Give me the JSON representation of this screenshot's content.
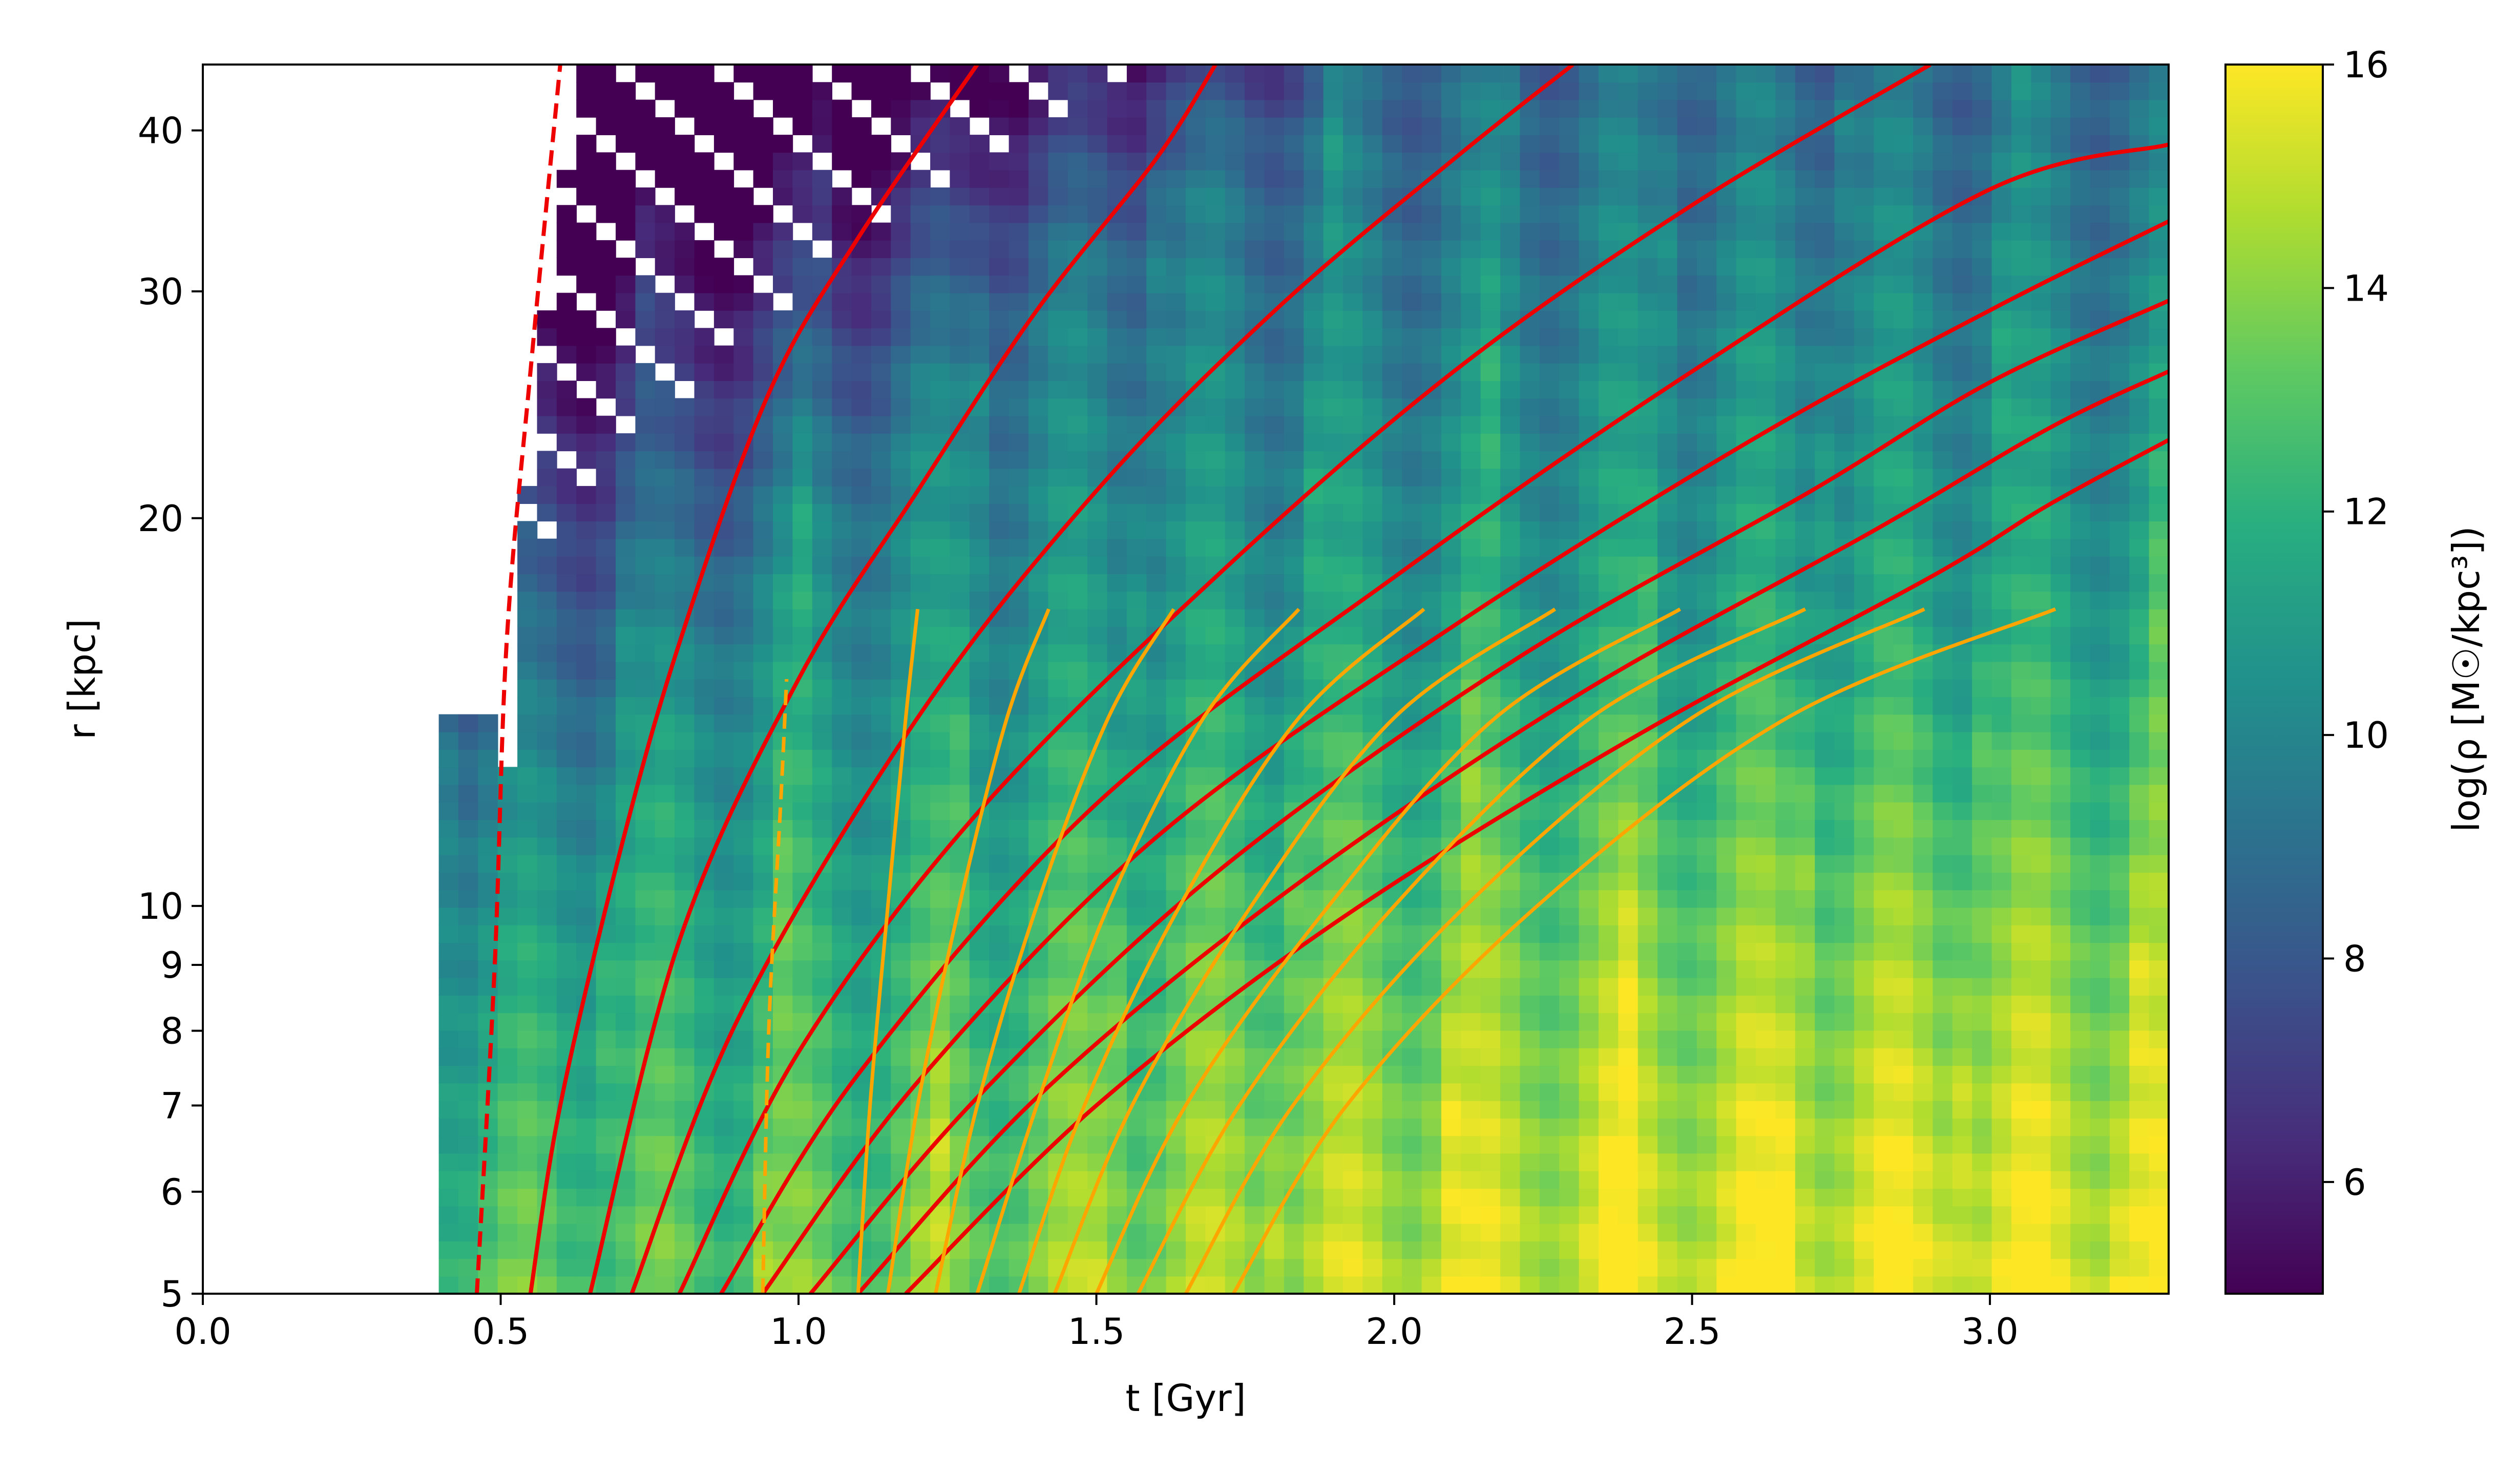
{
  "chart_data": {
    "type": "heatmap",
    "xlabel": "t [Gyr]",
    "ylabel": "r [kpc]",
    "colorbar_label": "log(ρ [M☉/kpc³])",
    "xlim": [
      0.0,
      3.3
    ],
    "ylim": [
      5,
      45
    ],
    "y_scale": "log",
    "x_ticks": [
      0.0,
      0.5,
      1.0,
      1.5,
      2.0,
      2.5,
      3.0
    ],
    "x_tick_labels": [
      "0.0",
      "0.5",
      "1.0",
      "1.5",
      "2.0",
      "2.5",
      "3.0"
    ],
    "y_ticks": [
      5,
      6,
      7,
      8,
      9,
      10,
      20,
      30,
      40
    ],
    "y_tick_labels": [
      "5",
      "6",
      "7",
      "8",
      "9",
      "10",
      "20",
      "30",
      "40"
    ],
    "colorbar_range": [
      5,
      16
    ],
    "colorbar_ticks": [
      6,
      8,
      10,
      12,
      14,
      16
    ],
    "colorbar_tick_labels": [
      "6",
      "8",
      "10",
      "12",
      "14",
      "16"
    ],
    "colormap": "viridis",
    "colors": {
      "shell_curves": "#ee0000",
      "inner_curves": "#ffa500"
    },
    "shell_curves": [
      {
        "style": "dashed",
        "points": [
          [
            0.46,
            5
          ],
          [
            0.49,
            9
          ],
          [
            0.51,
            16
          ],
          [
            0.55,
            26
          ],
          [
            0.6,
            45
          ]
        ]
      },
      {
        "style": "solid",
        "points": [
          [
            0.55,
            5
          ],
          [
            0.6,
            7
          ],
          [
            0.7,
            11
          ],
          [
            0.8,
            16
          ],
          [
            0.95,
            25
          ],
          [
            1.1,
            33
          ],
          [
            1.3,
            45
          ]
        ]
      },
      {
        "style": "solid",
        "points": [
          [
            0.65,
            5
          ],
          [
            0.8,
            9.4
          ],
          [
            1.0,
            15
          ],
          [
            1.2,
            21
          ],
          [
            1.4,
            29
          ],
          [
            1.6,
            38
          ],
          [
            1.7,
            45
          ]
        ]
      },
      {
        "style": "solid",
        "points": [
          [
            0.72,
            5
          ],
          [
            0.9,
            8.2
          ],
          [
            1.2,
            14
          ],
          [
            1.5,
            21
          ],
          [
            1.8,
            29
          ],
          [
            2.1,
            38
          ],
          [
            2.3,
            45
          ]
        ]
      },
      {
        "style": "solid",
        "points": [
          [
            0.8,
            5
          ],
          [
            1.0,
            7.7
          ],
          [
            1.3,
            11.8
          ],
          [
            1.7,
            18
          ],
          [
            2.1,
            26
          ],
          [
            2.5,
            35
          ],
          [
            2.9,
            45
          ]
        ]
      },
      {
        "style": "solid",
        "points": [
          [
            0.87,
            5
          ],
          [
            1.1,
            7.4
          ],
          [
            1.5,
            12
          ],
          [
            2.0,
            18
          ],
          [
            2.5,
            26
          ],
          [
            3.0,
            36
          ],
          [
            3.3,
            39
          ]
        ]
      },
      {
        "style": "solid",
        "points": [
          [
            0.94,
            5
          ],
          [
            1.2,
            7.3
          ],
          [
            1.6,
            11.3
          ],
          [
            2.1,
            16.5
          ],
          [
            2.6,
            23
          ],
          [
            3.0,
            29
          ],
          [
            3.3,
            34
          ]
        ]
      },
      {
        "style": "solid",
        "points": [
          [
            1.02,
            5
          ],
          [
            1.3,
            7.1
          ],
          [
            1.7,
            10.6
          ],
          [
            2.2,
            15.5
          ],
          [
            2.7,
            21
          ],
          [
            3.0,
            25.5
          ],
          [
            3.3,
            29.5
          ]
        ]
      },
      {
        "style": "solid",
        "points": [
          [
            1.1,
            5
          ],
          [
            1.4,
            7.1
          ],
          [
            1.8,
            10.1
          ],
          [
            2.3,
            14.5
          ],
          [
            2.8,
            19.5
          ],
          [
            3.1,
            23.5
          ],
          [
            3.3,
            26
          ]
        ]
      },
      {
        "style": "solid",
        "points": [
          [
            1.18,
            5
          ],
          [
            1.5,
            7.0
          ],
          [
            1.9,
            9.7
          ],
          [
            2.4,
            13.5
          ],
          [
            2.9,
            18
          ],
          [
            3.1,
            20.5
          ],
          [
            3.3,
            23
          ]
        ]
      }
    ],
    "inner_curves": [
      {
        "style": "dashed",
        "points": [
          [
            0.94,
            5
          ],
          [
            0.95,
            8
          ],
          [
            0.97,
            12
          ],
          [
            0.98,
            15
          ]
        ]
      },
      {
        "style": "solid",
        "points": [
          [
            1.1,
            5
          ],
          [
            1.12,
            7
          ],
          [
            1.15,
            10
          ],
          [
            1.18,
            14
          ],
          [
            1.2,
            17
          ]
        ]
      },
      {
        "style": "solid",
        "points": [
          [
            1.15,
            5
          ],
          [
            1.2,
            7
          ],
          [
            1.27,
            10
          ],
          [
            1.35,
            14
          ],
          [
            1.42,
            17
          ]
        ]
      },
      {
        "style": "solid",
        "points": [
          [
            1.23,
            5
          ],
          [
            1.3,
            7
          ],
          [
            1.4,
            10
          ],
          [
            1.52,
            14
          ],
          [
            1.63,
            17
          ]
        ]
      },
      {
        "style": "solid",
        "points": [
          [
            1.3,
            5
          ],
          [
            1.4,
            7
          ],
          [
            1.52,
            10
          ],
          [
            1.68,
            14
          ],
          [
            1.84,
            17
          ]
        ]
      },
      {
        "style": "solid",
        "points": [
          [
            1.37,
            5
          ],
          [
            1.48,
            7
          ],
          [
            1.64,
            10
          ],
          [
            1.84,
            14
          ],
          [
            2.05,
            17
          ]
        ]
      },
      {
        "style": "solid",
        "points": [
          [
            1.43,
            5
          ],
          [
            1.56,
            7
          ],
          [
            1.76,
            10
          ],
          [
            2.0,
            14
          ],
          [
            2.27,
            17
          ]
        ]
      },
      {
        "style": "solid",
        "points": [
          [
            1.5,
            5
          ],
          [
            1.65,
            7
          ],
          [
            1.89,
            10
          ],
          [
            2.17,
            14
          ],
          [
            2.48,
            17
          ]
        ]
      },
      {
        "style": "solid",
        "points": [
          [
            1.57,
            5
          ],
          [
            1.74,
            7
          ],
          [
            2.0,
            10
          ],
          [
            2.33,
            14
          ],
          [
            2.69,
            17
          ]
        ]
      },
      {
        "style": "solid",
        "points": [
          [
            1.65,
            5
          ],
          [
            1.83,
            7
          ],
          [
            2.12,
            10
          ],
          [
            2.5,
            14
          ],
          [
            2.89,
            17
          ]
        ]
      },
      {
        "style": "solid",
        "points": [
          [
            1.73,
            5
          ],
          [
            1.92,
            7
          ],
          [
            2.24,
            10
          ],
          [
            2.66,
            14
          ],
          [
            3.11,
            17
          ]
        ]
      }
    ]
  }
}
